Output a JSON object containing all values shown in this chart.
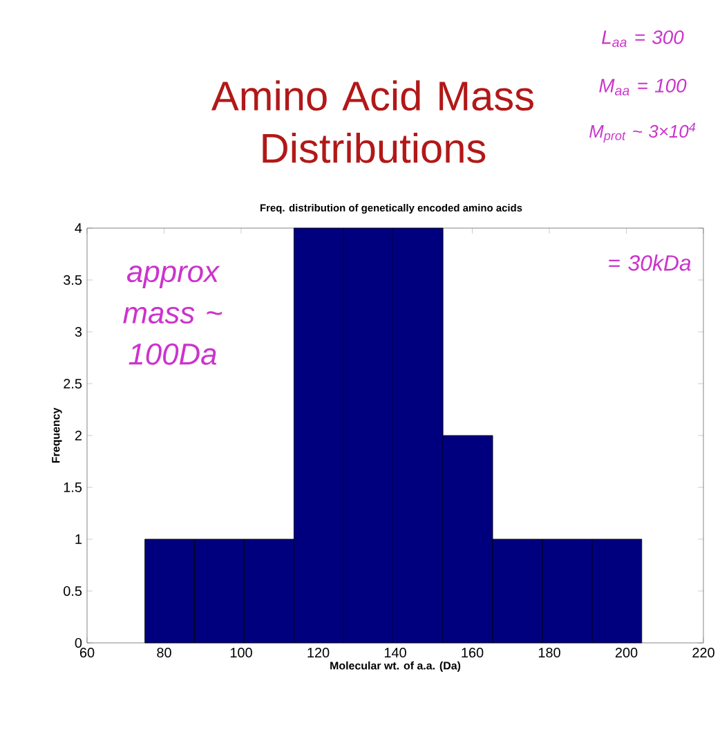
{
  "chart_data": {
    "type": "histogram",
    "title": "Amino Acid Mass Distributions",
    "subtitle": "Freq. distribution of genetically encoded amino acids",
    "xlabel": "Molecular wt. of a.a. (Da)",
    "ylabel": "Frequency",
    "bins": [
      75,
      87.9,
      100.8,
      113.7,
      126.6,
      139.5,
      152.4,
      165.3,
      178.2,
      191.1,
      204
    ],
    "values": [
      1,
      1,
      1,
      4,
      4,
      4,
      2,
      1,
      1,
      1
    ],
    "color": "#00007f",
    "xlim": [
      60,
      220
    ],
    "ylim": [
      0,
      4
    ],
    "xticks": [
      60,
      80,
      100,
      120,
      140,
      160,
      180,
      200,
      220
    ],
    "yticks": [
      0,
      0.5,
      1,
      1.5,
      2,
      2.5,
      3,
      3.5,
      4
    ],
    "annotations": [
      "approx mass ~ 100Da",
      "L$_{aa}$ = 300",
      "M$_{aa}$ = 100",
      "M$_{prot}$ ~ 3×10$^{4}$",
      "= 30kDa"
    ]
  }
}
